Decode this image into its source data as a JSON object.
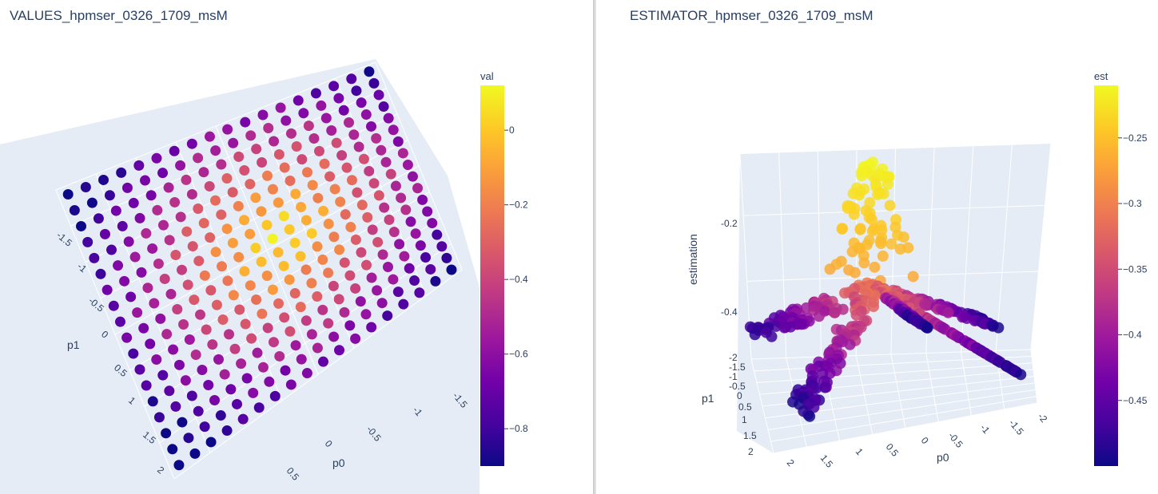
{
  "chart_data": [
    {
      "type": "scatter",
      "projection": "3d",
      "title": "VALUES_hpmser_0326_1709_msM",
      "xlabel": "p0",
      "ylabel": "p1",
      "x_ticks": [
        "0.5",
        "0",
        "-0.5",
        "-1",
        "-1.5"
      ],
      "y_ticks": [
        "-1.5",
        "-1",
        "-0.5",
        "0",
        "0.5",
        "1",
        "1.5",
        "2"
      ],
      "xlim": [
        -2,
        2
      ],
      "ylim": [
        -2,
        2
      ],
      "colorbar": {
        "title": "val",
        "ticks": [
          "0",
          "−0.2",
          "−0.4",
          "−0.6",
          "−0.8"
        ],
        "tick_values": [
          0,
          -0.2,
          -0.4,
          -0.6,
          -0.8
        ],
        "range": [
          -0.9,
          0.12
        ],
        "colorscale": "plasma"
      },
      "grid": "regular p0/p1 sample grid, value peaks near the center",
      "peak_value": 0.1,
      "min_value": -0.85
    },
    {
      "type": "scatter",
      "projection": "3d",
      "title": "ESTIMATOR_hpmser_0326_1709_msM",
      "xlabel": "p0",
      "ylabel": "p1",
      "zlabel": "estimation",
      "x_ticks": [
        "2",
        "1.5",
        "1",
        "0.5",
        "0",
        "-0.5",
        "-1",
        "-1.5",
        "-2"
      ],
      "y_ticks": [
        "-2",
        "-1.5",
        "-1",
        "-0.5",
        "0",
        "0.5",
        "1",
        "1.5",
        "2"
      ],
      "z_ticks": [
        "-0.2",
        "-0.4"
      ],
      "xlim": [
        -2,
        2
      ],
      "ylim": [
        -2,
        2
      ],
      "zlim": [
        -0.5,
        -0.1
      ],
      "colorbar": {
        "title": "est",
        "ticks": [
          "−0.25",
          "−0.3",
          "−0.35",
          "−0.4",
          "−0.45"
        ],
        "tick_values": [
          -0.25,
          -0.3,
          -0.35,
          -0.4,
          -0.45
        ],
        "range": [
          -0.5,
          -0.21
        ],
        "colorscale": "plasma"
      },
      "peak_value": -0.21,
      "min_value": -0.5
    }
  ],
  "colors": {
    "scene_bg": "#e5ecf6",
    "grid": "#ffffff",
    "text": "#2a3f5f"
  }
}
